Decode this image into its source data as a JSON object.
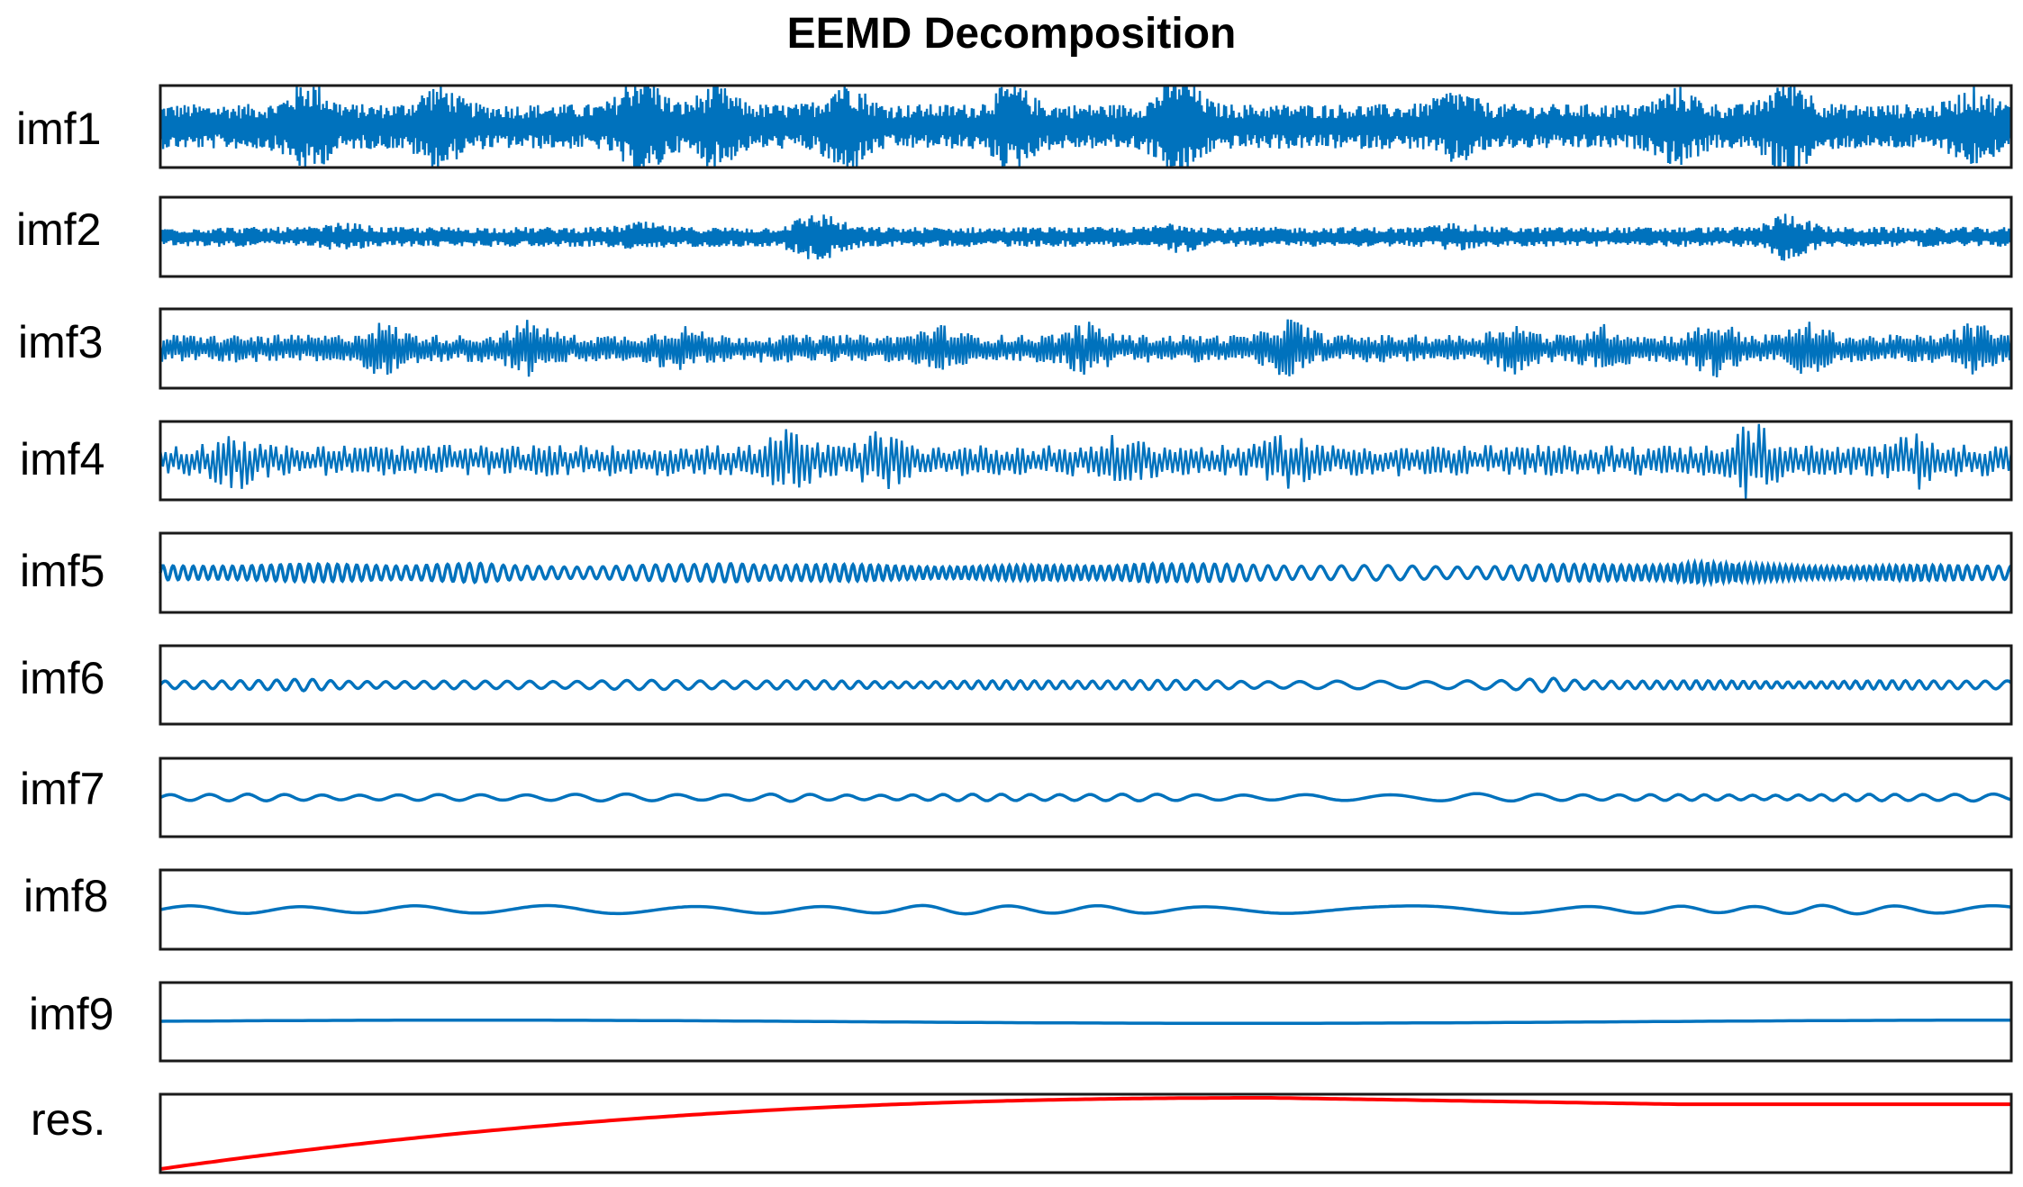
{
  "chart_data": {
    "type": "line",
    "title": "EEMD Decomposition",
    "xlabel": "",
    "ylabel": "",
    "grid": false,
    "legend": "none",
    "panels": [
      {
        "label": "imf1",
        "color": "#0072BD",
        "amplitude": 0.55,
        "kind": "noise-bursts",
        "cycles": 900,
        "bursts": [
          [
            0.08,
            0.7
          ],
          [
            0.15,
            0.6
          ],
          [
            0.26,
            0.5
          ],
          [
            0.26,
            0.5
          ],
          [
            0.3,
            0.55
          ],
          [
            0.37,
            0.8
          ],
          [
            0.46,
            0.6
          ],
          [
            0.55,
            1.0
          ],
          [
            0.7,
            0.45
          ],
          [
            0.82,
            0.5
          ],
          [
            0.88,
            0.9
          ],
          [
            0.98,
            0.5
          ]
        ]
      },
      {
        "label": "imf2",
        "color": "#0072BD",
        "amplitude": 0.25,
        "kind": "noise-bursts",
        "cycles": 700,
        "bursts": [
          [
            0.1,
            0.3
          ],
          [
            0.26,
            0.35
          ],
          [
            0.36,
            0.6
          ],
          [
            0.35,
            0.55
          ],
          [
            0.55,
            0.4
          ],
          [
            0.7,
            0.3
          ],
          [
            0.88,
            1.0
          ]
        ]
      },
      {
        "label": "imf3",
        "color": "#0072BD",
        "amplitude": 0.35,
        "kind": "noise-bursts",
        "cycles": 500,
        "bursts": [
          [
            0.12,
            0.6
          ],
          [
            0.2,
            0.7
          ],
          [
            0.28,
            0.5
          ],
          [
            0.42,
            0.5
          ],
          [
            0.5,
            0.6
          ],
          [
            0.61,
            0.8
          ],
          [
            0.73,
            0.6
          ],
          [
            0.78,
            0.5
          ],
          [
            0.84,
            0.7
          ],
          [
            0.89,
            0.6
          ],
          [
            0.98,
            0.6
          ]
        ]
      },
      {
        "label": "imf4",
        "color": "#0072BD",
        "amplitude": 0.4,
        "kind": "noise-bursts",
        "cycles": 320,
        "bursts": [
          [
            0.04,
            0.6
          ],
          [
            0.34,
            0.7
          ],
          [
            0.39,
            0.6
          ],
          [
            0.52,
            0.5
          ],
          [
            0.61,
            0.6
          ],
          [
            0.86,
            1.0
          ],
          [
            0.95,
            0.7
          ]
        ]
      },
      {
        "label": "imf5",
        "color": "#0072BD",
        "amplitude": 0.22,
        "kind": "wave",
        "cycles": 180,
        "bursts": [
          [
            0.15,
            0.5
          ],
          [
            0.17,
            0.6
          ],
          [
            0.31,
            0.5
          ],
          [
            0.53,
            0.5
          ],
          [
            0.83,
            0.5
          ]
        ]
      },
      {
        "label": "imf6",
        "color": "#0072BD",
        "amplitude": 0.12,
        "kind": "wave",
        "cycles": 95,
        "bursts": [
          [
            0.08,
            0.5
          ],
          [
            0.2,
            0.6
          ],
          [
            0.7,
            0.5
          ],
          [
            0.75,
            0.8
          ]
        ]
      },
      {
        "label": "imf7",
        "color": "#0072BD",
        "amplitude": 0.09,
        "kind": "wave",
        "cycles": 46,
        "bursts": [
          [
            0.34,
            0.6
          ],
          [
            0.58,
            0.5
          ],
          [
            0.7,
            0.6
          ],
          [
            0.98,
            0.5
          ]
        ]
      },
      {
        "label": "imf8",
        "color": "#0072BD",
        "amplitude": 0.11,
        "kind": "wave",
        "cycles": 15.5,
        "bursts": []
      },
      {
        "label": "imf9",
        "color": "#0072BD",
        "amplitude": 0.04,
        "kind": "slow",
        "cycles": 1.2,
        "bursts": []
      },
      {
        "label": "res.",
        "color": "#FF0000",
        "amplitude": 1.0,
        "kind": "trend",
        "cycles": 0,
        "bursts": []
      }
    ]
  }
}
